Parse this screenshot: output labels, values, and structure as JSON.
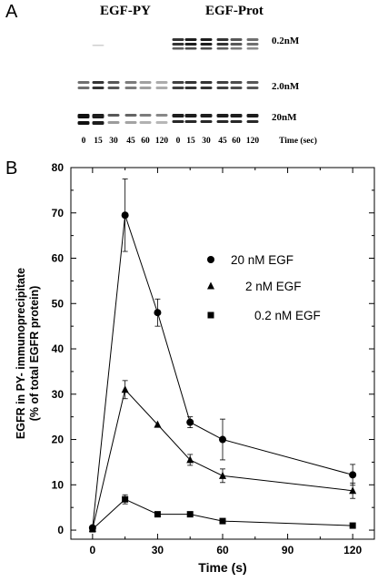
{
  "panel_a": {
    "label": "A",
    "header_left": "EGF-PY",
    "header_right": "EGF-Prot",
    "concentration_labels": [
      "0.2nM",
      "2.0nM",
      "20nM"
    ],
    "lane_times_left": [
      "0",
      "15",
      "30",
      "45",
      "60",
      "120"
    ],
    "lane_times_right": [
      "0",
      "15",
      "30",
      "45",
      "60",
      "120"
    ],
    "time_caption": "Time (sec)"
  },
  "panel_b": {
    "label": "B"
  },
  "chart_data": {
    "type": "scatter",
    "title": "",
    "xlabel": "Time (s)",
    "ylabel_line1": "EGFR in PY- immunoprecipitate",
    "ylabel_line2": "(% of total EGFR protein)",
    "xlim": [
      -10,
      130
    ],
    "ylim": [
      -2,
      80
    ],
    "x_ticks": [
      "0",
      "30",
      "60",
      "90",
      "120"
    ],
    "y_ticks": [
      "0",
      "10",
      "20",
      "30",
      "40",
      "50",
      "60",
      "70",
      "80"
    ],
    "legend_position": "right",
    "series": [
      {
        "name": "20 nM EGF",
        "marker": "circle",
        "x": [
          0,
          15,
          30,
          45,
          60,
          120
        ],
        "y": [
          0.5,
          69.5,
          48,
          23.8,
          20,
          12.2
        ],
        "err": [
          0.3,
          8,
          3,
          1.2,
          4.5,
          2.3
        ]
      },
      {
        "name": "2 nM EGF",
        "marker": "triangle",
        "x": [
          0,
          15,
          30,
          45,
          60,
          120
        ],
        "y": [
          0.3,
          31,
          23.3,
          15.5,
          12,
          8.7
        ],
        "err": [
          0.2,
          2,
          0.5,
          1.2,
          1.5,
          1.7
        ]
      },
      {
        "name": "0.2 nM EGF",
        "marker": "square",
        "x": [
          0,
          15,
          30,
          45,
          60,
          120
        ],
        "y": [
          0.2,
          6.8,
          3.5,
          3.5,
          2,
          1
        ],
        "err": [
          0.2,
          1,
          0.3,
          0.3,
          0.3,
          0.3
        ]
      }
    ]
  }
}
